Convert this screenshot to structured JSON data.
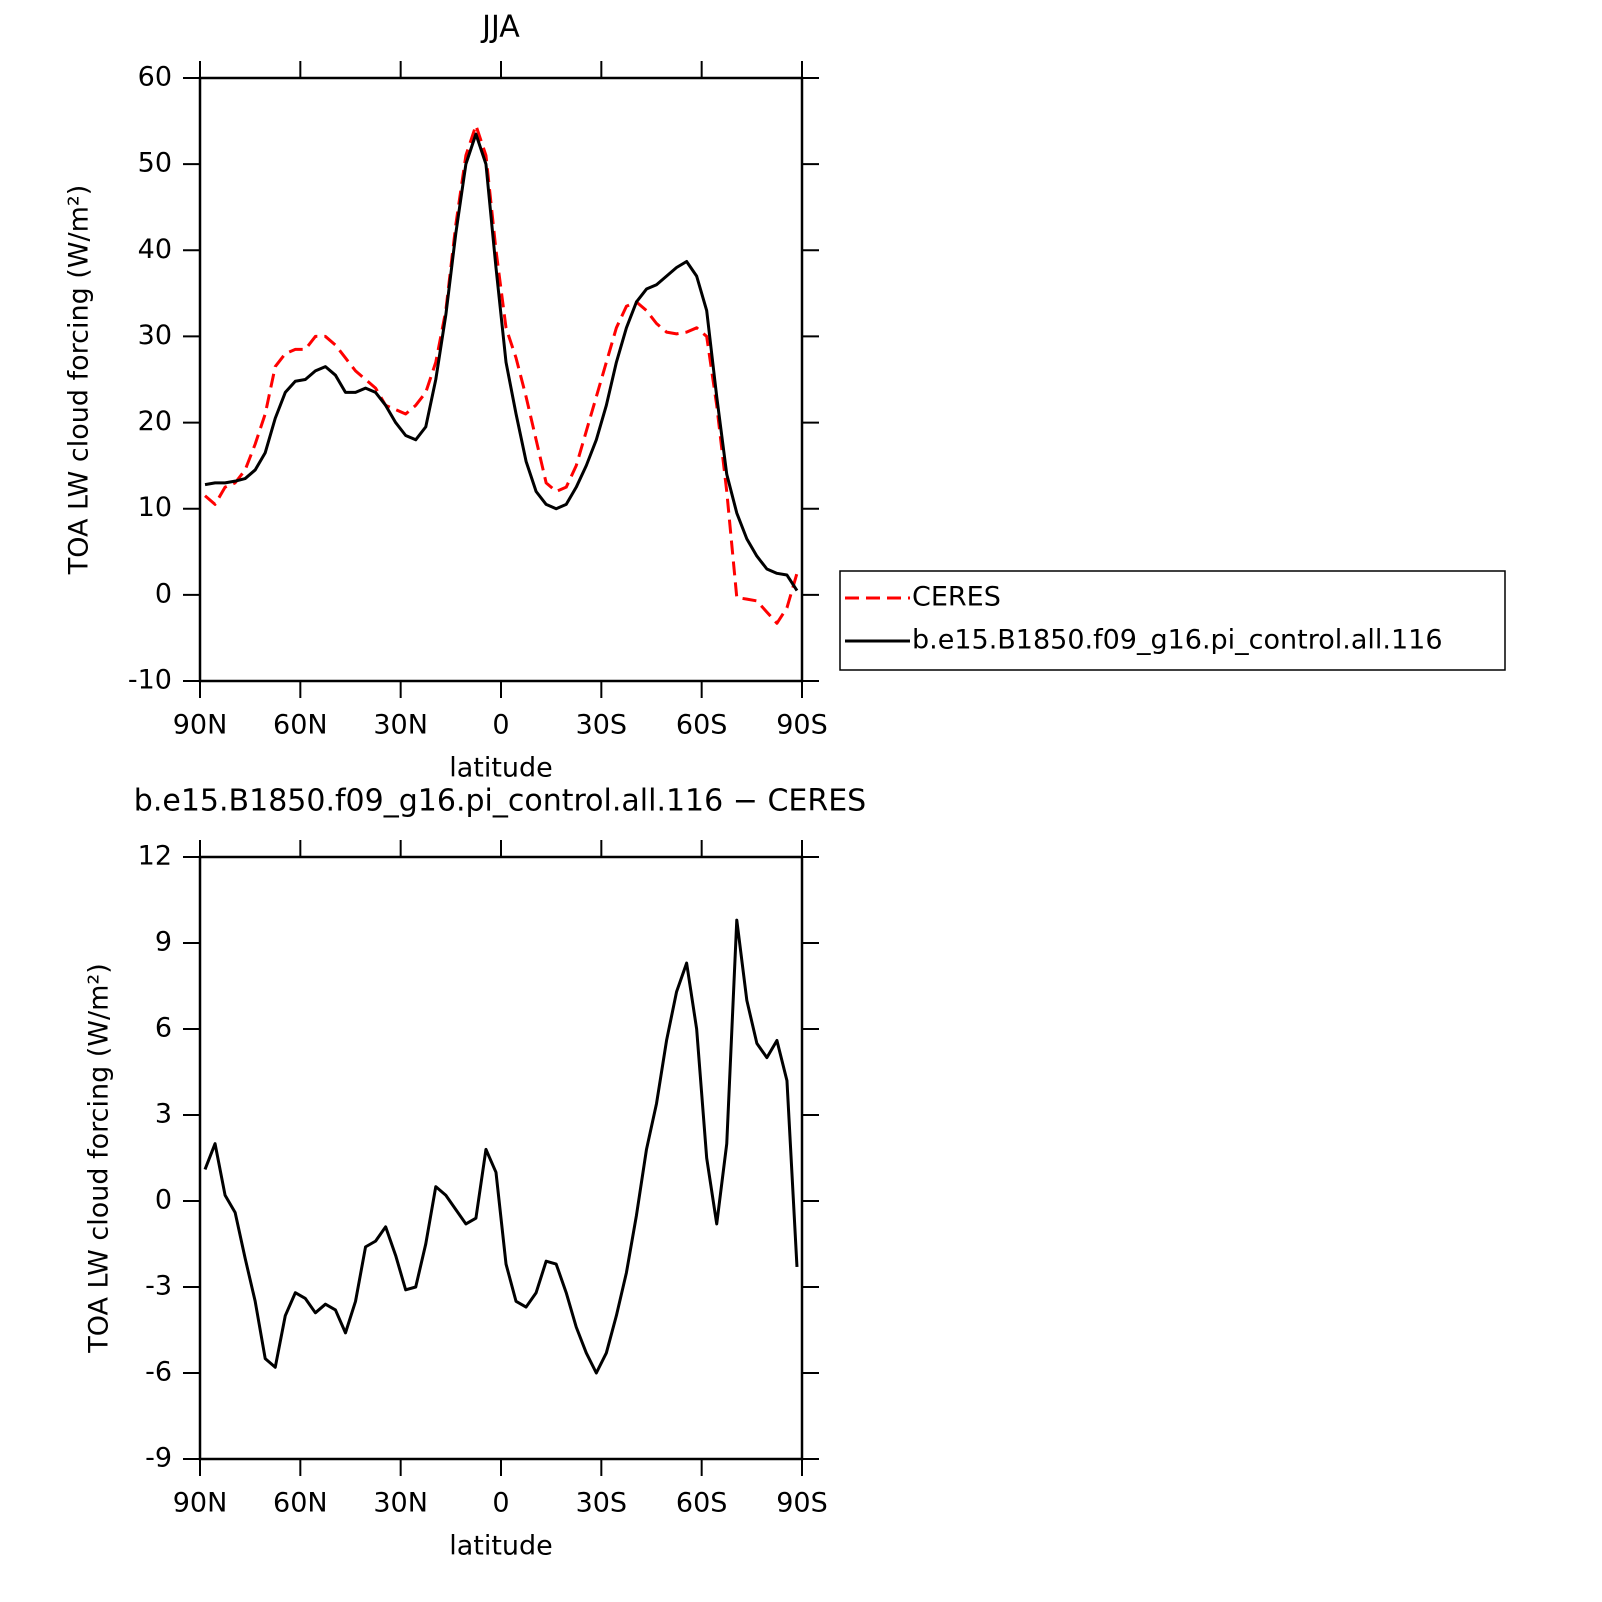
{
  "chart_data": [
    {
      "type": "line",
      "title": "JJA",
      "xlabel": "latitude",
      "ylabel": "TOA LW cloud forcing (W/m²)",
      "x": [
        88.5,
        85.5,
        82.5,
        79.5,
        76.5,
        73.5,
        70.5,
        67.5,
        64.5,
        61.5,
        58.5,
        55.5,
        52.5,
        49.5,
        46.5,
        43.5,
        40.5,
        37.5,
        34.5,
        31.5,
        28.5,
        25.5,
        22.5,
        19.5,
        16.5,
        13.5,
        10.5,
        7.5,
        4.5,
        1.5,
        -1.5,
        -4.5,
        -7.5,
        -10.5,
        -13.5,
        -16.5,
        -19.5,
        -22.5,
        -25.5,
        -28.5,
        -31.5,
        -34.5,
        -37.5,
        -40.5,
        -43.5,
        -46.5,
        -49.5,
        -52.5,
        -55.5,
        -58.5,
        -61.5,
        -64.5,
        -67.5,
        -70.5,
        -73.5,
        -76.5,
        -79.5,
        -82.5,
        -85.5,
        -88.5
      ],
      "series": [
        {
          "name": "CERES",
          "color": "#ff0000",
          "dash": "dashed",
          "values": [
            11.5,
            10.5,
            12.5,
            13.0,
            14.5,
            17.5,
            21.0,
            26.5,
            28.0,
            28.5,
            28.5,
            30.0,
            30.0,
            29.0,
            27.5,
            26.0,
            25.0,
            24.0,
            22.0,
            21.5,
            21.0,
            22.0,
            23.5,
            27.0,
            33.0,
            43.0,
            51.0,
            54.5,
            51.0,
            40.0,
            31.0,
            27.5,
            23.0,
            18.0,
            13.0,
            12.0,
            12.5,
            15.0,
            19.0,
            23.0,
            27.0,
            31.0,
            33.5,
            34.0,
            33.0,
            31.5,
            30.5,
            30.3,
            30.5,
            31.0,
            30.0,
            22.0,
            12.0,
            -0.3,
            -0.5,
            -0.7,
            -2.0,
            -3.3,
            -1.5,
            2.5
          ]
        },
        {
          "name": "b.e15.B1850.f09_g16.pi_control.all.116",
          "color": "#000000",
          "dash": "solid",
          "values": [
            12.8,
            13.0,
            13.0,
            13.2,
            13.5,
            14.5,
            16.5,
            20.5,
            23.5,
            24.8,
            25.0,
            26.0,
            26.5,
            25.5,
            23.5,
            23.5,
            24.0,
            23.5,
            22.0,
            20.0,
            18.5,
            18.0,
            19.5,
            25.0,
            32.5,
            42.0,
            50.0,
            53.5,
            50.0,
            38.0,
            27.0,
            21.0,
            15.5,
            12.0,
            10.5,
            10.0,
            10.5,
            12.5,
            15.0,
            18.0,
            22.0,
            27.0,
            31.0,
            34.0,
            35.5,
            36.0,
            37.0,
            38.0,
            38.7,
            37.0,
            33.0,
            23.0,
            14.0,
            9.5,
            6.5,
            4.5,
            3.0,
            2.5,
            2.3,
            0.5
          ]
        }
      ],
      "xlim": [
        90,
        -90
      ],
      "xticks": [
        {
          "value": 90,
          "label": "90N"
        },
        {
          "value": 60,
          "label": "60N"
        },
        {
          "value": 30,
          "label": "30N"
        },
        0,
        {
          "value": -30,
          "label": "30S"
        },
        {
          "value": -60,
          "label": "60S"
        },
        {
          "value": -90,
          "label": "90S"
        }
      ],
      "ylim": [
        -10,
        60
      ],
      "yticks": [
        -10,
        0,
        10,
        20,
        30,
        40,
        50,
        60
      ],
      "legend": "right"
    },
    {
      "type": "line",
      "title": "b.e15.B1850.f09_g16.pi_control.all.116 − CERES",
      "xlabel": "latitude",
      "ylabel": "TOA LW cloud forcing (W/m²)",
      "x": [
        88.5,
        85.5,
        82.5,
        79.5,
        76.5,
        73.5,
        70.5,
        67.5,
        64.5,
        61.5,
        58.5,
        55.5,
        52.5,
        49.5,
        46.5,
        43.5,
        40.5,
        37.5,
        34.5,
        31.5,
        28.5,
        25.5,
        22.5,
        19.5,
        16.5,
        13.5,
        10.5,
        7.5,
        4.5,
        1.5,
        -1.5,
        -4.5,
        -7.5,
        -10.5,
        -13.5,
        -16.5,
        -19.5,
        -22.5,
        -25.5,
        -28.5,
        -31.5,
        -34.5,
        -37.5,
        -40.5,
        -43.5,
        -46.5,
        -49.5,
        -52.5,
        -55.5,
        -58.5,
        -61.5,
        -64.5,
        -67.5,
        -70.5,
        -73.5,
        -76.5,
        -79.5,
        -82.5,
        -85.5,
        -88.5
      ],
      "series": [
        {
          "color": "#000000",
          "dash": "solid",
          "values": [
            1.1,
            2.0,
            0.2,
            -0.4,
            -2.0,
            -3.5,
            -5.5,
            -5.8,
            -4.0,
            -3.2,
            -3.4,
            -3.9,
            -3.6,
            -3.8,
            -4.6,
            -3.5,
            -1.6,
            -1.4,
            -0.9,
            -1.9,
            -3.1,
            -3.0,
            -1.5,
            0.5,
            0.2,
            -0.3,
            -0.8,
            -0.6,
            1.8,
            1.0,
            -2.2,
            -3.5,
            -3.7,
            -3.2,
            -2.1,
            -2.2,
            -3.2,
            -4.4,
            -5.3,
            -6.0,
            -5.3,
            -4.0,
            -2.5,
            -0.5,
            1.8,
            3.4,
            5.6,
            7.3,
            8.3,
            6.0,
            1.5,
            -0.8,
            2.0,
            9.8,
            7.0,
            5.5,
            5.0,
            5.6,
            4.2,
            -2.3
          ]
        }
      ],
      "xlim": [
        90,
        -90
      ],
      "xticks": [
        {
          "value": 90,
          "label": "90N"
        },
        {
          "value": 60,
          "label": "60N"
        },
        {
          "value": 30,
          "label": "30N"
        },
        0,
        {
          "value": -30,
          "label": "30S"
        },
        {
          "value": -60,
          "label": "60S"
        },
        {
          "value": -90,
          "label": "90S"
        }
      ],
      "ylim": [
        -9,
        12
      ],
      "yticks": [
        -9,
        -6,
        -3,
        0,
        3,
        6,
        9,
        12
      ]
    }
  ]
}
